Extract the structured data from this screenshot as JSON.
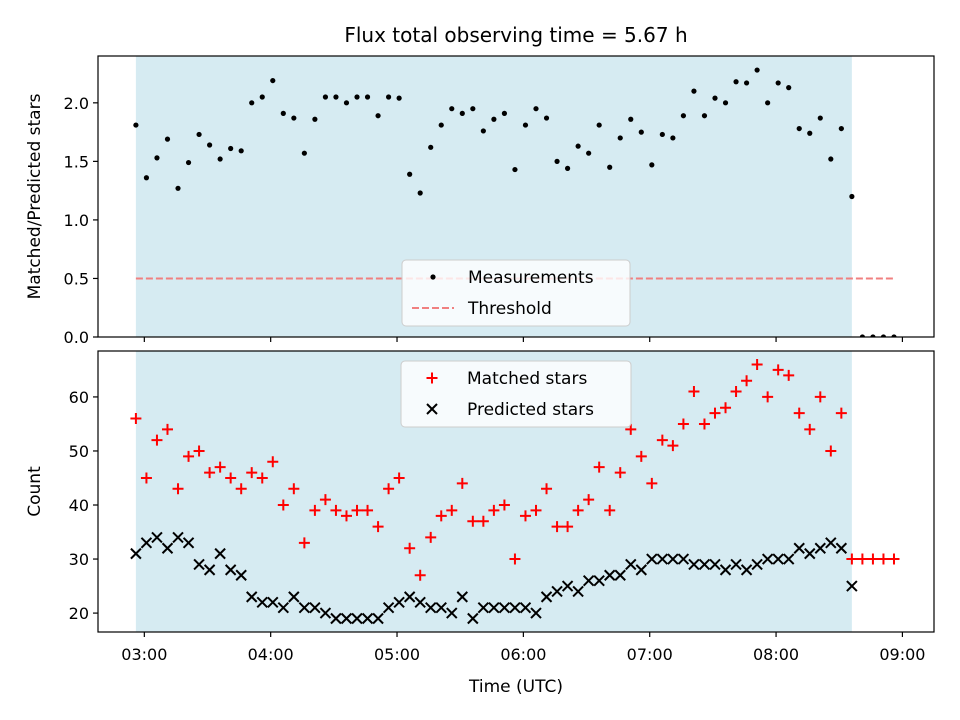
{
  "chart_data": [
    {
      "type": "scatter",
      "title": "Flux total observing time = 5.67 h",
      "xlabel": "",
      "ylabel": "Matched/Predicted stars",
      "xlim": [
        "02:38",
        "09:15"
      ],
      "ylim": [
        0,
        2.4
      ],
      "yticks": [
        0.0,
        0.5,
        1.0,
        1.5,
        2.0
      ],
      "ytick_labels": [
        "0.0",
        "0.5",
        "1.0",
        "1.5",
        "2.0"
      ],
      "observing_span": [
        "02:56",
        "08:36"
      ],
      "observing_span_color": "#add8e6",
      "threshold": {
        "value": 0.5,
        "x_range": [
          "02:56",
          "08:56"
        ],
        "color": "#f08080"
      },
      "legend": {
        "placement": "lower center",
        "entries": [
          "Measurements",
          "Threshold"
        ]
      },
      "series": [
        {
          "name": "Measurements",
          "marker": "dot",
          "color": "#000000",
          "points": [
            [
              "02:56",
              1.81
            ],
            [
              "03:01",
              1.36
            ],
            [
              "03:06",
              1.53
            ],
            [
              "03:11",
              1.69
            ],
            [
              "03:16",
              1.27
            ],
            [
              "03:21",
              1.49
            ],
            [
              "03:26",
              1.73
            ],
            [
              "03:31",
              1.64
            ],
            [
              "03:36",
              1.52
            ],
            [
              "03:41",
              1.61
            ],
            [
              "03:46",
              1.59
            ],
            [
              "03:51",
              2.0
            ],
            [
              "03:56",
              2.05
            ],
            [
              "04:01",
              2.19
            ],
            [
              "04:06",
              1.91
            ],
            [
              "04:11",
              1.87
            ],
            [
              "04:16",
              1.57
            ],
            [
              "04:21",
              1.86
            ],
            [
              "04:26",
              2.05
            ],
            [
              "04:31",
              2.05
            ],
            [
              "04:36",
              2.0
            ],
            [
              "04:41",
              2.05
            ],
            [
              "04:46",
              2.05
            ],
            [
              "04:51",
              1.89
            ],
            [
              "04:56",
              2.05
            ],
            [
              "05:01",
              2.04
            ],
            [
              "05:06",
              1.39
            ],
            [
              "05:11",
              1.23
            ],
            [
              "05:16",
              1.62
            ],
            [
              "05:21",
              1.81
            ],
            [
              "05:26",
              1.95
            ],
            [
              "05:31",
              1.91
            ],
            [
              "05:36",
              1.95
            ],
            [
              "05:41",
              1.76
            ],
            [
              "05:46",
              1.86
            ],
            [
              "05:51",
              1.91
            ],
            [
              "05:56",
              1.43
            ],
            [
              "06:01",
              1.81
            ],
            [
              "06:06",
              1.95
            ],
            [
              "06:11",
              1.87
            ],
            [
              "06:16",
              1.5
            ],
            [
              "06:21",
              1.44
            ],
            [
              "06:26",
              1.63
            ],
            [
              "06:31",
              1.57
            ],
            [
              "06:36",
              1.81
            ],
            [
              "06:41",
              1.45
            ],
            [
              "06:46",
              1.7
            ],
            [
              "06:51",
              1.86
            ],
            [
              "06:56",
              1.75
            ],
            [
              "07:01",
              1.47
            ],
            [
              "07:06",
              1.73
            ],
            [
              "07:11",
              1.7
            ],
            [
              "07:16",
              1.89
            ],
            [
              "07:21",
              2.1
            ],
            [
              "07:26",
              1.89
            ],
            [
              "07:31",
              2.04
            ],
            [
              "07:36",
              2.0
            ],
            [
              "07:41",
              2.18
            ],
            [
              "07:46",
              2.17
            ],
            [
              "07:51",
              2.28
            ],
            [
              "07:56",
              2.0
            ],
            [
              "08:01",
              2.17
            ],
            [
              "08:06",
              2.13
            ],
            [
              "08:11",
              1.78
            ],
            [
              "08:16",
              1.74
            ],
            [
              "08:21",
              1.87
            ],
            [
              "08:26",
              1.52
            ],
            [
              "08:31",
              1.78
            ],
            [
              "08:36",
              1.2
            ],
            [
              "08:41",
              0.0
            ],
            [
              "08:46",
              0.0
            ],
            [
              "08:51",
              0.0
            ],
            [
              "08:56",
              0.0
            ]
          ]
        }
      ]
    },
    {
      "type": "scatter",
      "title": "",
      "xlabel": "Time (UTC)",
      "ylabel": "Count",
      "xlim": [
        "02:38",
        "09:15"
      ],
      "ylim": [
        16.5,
        68.5
      ],
      "yticks": [
        20,
        30,
        40,
        50,
        60
      ],
      "ytick_labels": [
        "20",
        "30",
        "40",
        "50",
        "60"
      ],
      "xticks": [
        "03:00",
        "04:00",
        "05:00",
        "06:00",
        "07:00",
        "08:00",
        "09:00"
      ],
      "xtick_labels": [
        "03:00",
        "04:00",
        "05:00",
        "06:00",
        "07:00",
        "08:00",
        "09:00"
      ],
      "observing_span": [
        "02:56",
        "08:36"
      ],
      "observing_span_color": "#add8e6",
      "legend": {
        "placement": "upper center",
        "entries": [
          "Matched stars",
          "Predicted stars"
        ]
      },
      "x": [
        "02:56",
        "03:01",
        "03:06",
        "03:11",
        "03:16",
        "03:21",
        "03:26",
        "03:31",
        "03:36",
        "03:41",
        "03:46",
        "03:51",
        "03:56",
        "04:01",
        "04:06",
        "04:11",
        "04:16",
        "04:21",
        "04:26",
        "04:31",
        "04:36",
        "04:41",
        "04:46",
        "04:51",
        "04:56",
        "05:01",
        "05:06",
        "05:11",
        "05:16",
        "05:21",
        "05:26",
        "05:31",
        "05:36",
        "05:41",
        "05:46",
        "05:51",
        "05:56",
        "06:01",
        "06:06",
        "06:11",
        "06:16",
        "06:21",
        "06:26",
        "06:31",
        "06:36",
        "06:41",
        "06:46",
        "06:51",
        "06:56",
        "07:01",
        "07:06",
        "07:11",
        "07:16",
        "07:21",
        "07:26",
        "07:31",
        "07:36",
        "07:41",
        "07:46",
        "07:51",
        "07:56",
        "08:01",
        "08:06",
        "08:11",
        "08:16",
        "08:21",
        "08:26",
        "08:31",
        "08:36",
        "08:41",
        "08:46",
        "08:51",
        "08:56"
      ],
      "series": [
        {
          "name": "Matched stars",
          "marker": "plus",
          "color": "#ff0000",
          "values": [
            56,
            45,
            52,
            54,
            43,
            49,
            50,
            46,
            47,
            45,
            43,
            46,
            45,
            48,
            40,
            43,
            33,
            39,
            41,
            39,
            38,
            39,
            39,
            36,
            43,
            45,
            32,
            27,
            34,
            38,
            39,
            44,
            37,
            37,
            39,
            40,
            30,
            38,
            39,
            43,
            36,
            36,
            39,
            41,
            47,
            39,
            46,
            54,
            49,
            44,
            52,
            51,
            55,
            61,
            55,
            57,
            58,
            61,
            63,
            66,
            60,
            65,
            64,
            57,
            54,
            60,
            50,
            57,
            30,
            30,
            30,
            30,
            30
          ]
        },
        {
          "name": "Predicted stars",
          "marker": "x",
          "color": "#000000",
          "values": [
            31,
            33,
            34,
            32,
            34,
            33,
            29,
            28,
            31,
            28,
            27,
            23,
            22,
            22,
            21,
            23,
            21,
            21,
            20,
            19,
            19,
            19,
            19,
            19,
            21,
            22,
            23,
            22,
            21,
            21,
            20,
            23,
            19,
            21,
            21,
            21,
            21,
            21,
            20,
            23,
            24,
            25,
            24,
            26,
            26,
            27,
            27,
            29,
            28,
            30,
            30,
            30,
            30,
            29,
            29,
            29,
            28,
            29,
            28,
            29,
            30,
            30,
            30,
            32,
            31,
            32,
            33,
            32,
            25
          ]
        }
      ]
    }
  ]
}
